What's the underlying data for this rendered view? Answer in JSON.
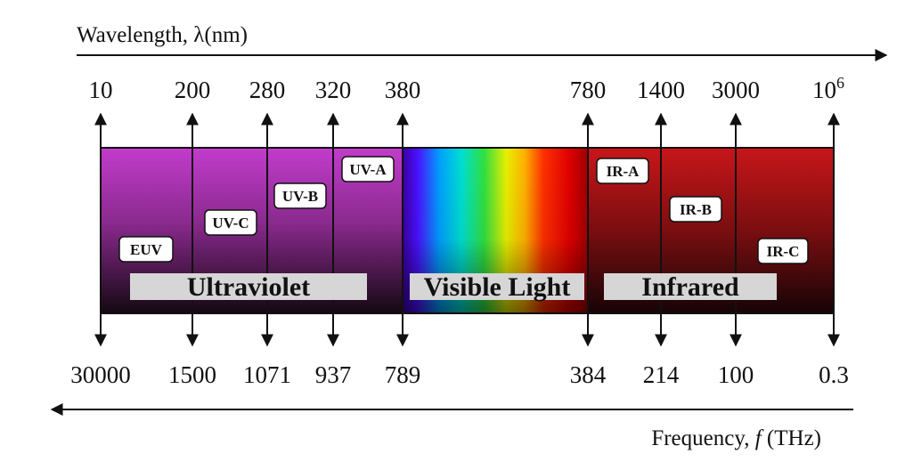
{
  "wavelength_axis": {
    "title": "Wavelength, λ(nm)",
    "ticks": [
      "10",
      "200",
      "280",
      "320",
      "380",
      "780",
      "1400",
      "3000"
    ],
    "last_tick_base": "10",
    "last_tick_exp": "6"
  },
  "frequency_axis": {
    "title_prefix": "Frequency, ",
    "title_symbol": "f",
    "title_suffix": " (THz)",
    "ticks": [
      "30000",
      "1500",
      "1071",
      "937",
      "789",
      "384",
      "214",
      "100",
      "0.3"
    ]
  },
  "regions": {
    "ultraviolet": "Ultraviolet",
    "visible": "Visible Light",
    "infrared": "Infrared"
  },
  "bands": {
    "euv": "EUV",
    "uvc": "UV-C",
    "uvb": "UV-B",
    "uva": "UV-A",
    "ira": "IR-A",
    "irb": "IR-B",
    "irc": "IR-C"
  },
  "colors": {
    "uv_top": "#c03cc8",
    "uv_bottom": "#1a0a1a",
    "ir_top": "#c01818",
    "ir_bottom": "#1a0606",
    "label_box": "#d8d8d8",
    "line": "#111111"
  }
}
